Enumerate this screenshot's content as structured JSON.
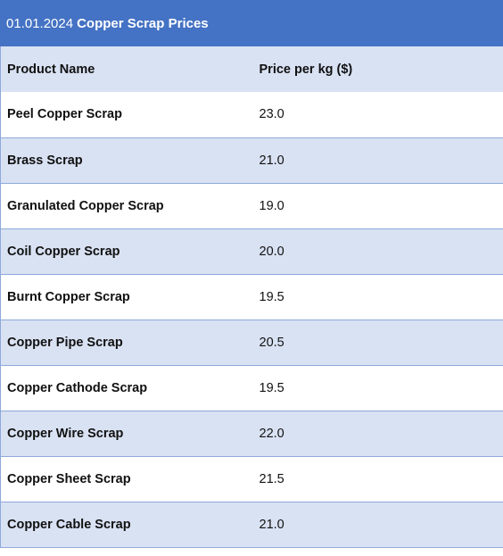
{
  "title": {
    "date": "01.01.2024",
    "text": "Copper Scrap Prices"
  },
  "table": {
    "headers": [
      "Product Name",
      "Price per kg ($)"
    ],
    "rows": [
      {
        "name": "Peel Copper Scrap",
        "price": "23.0"
      },
      {
        "name": "Brass Scrap",
        "price": "21.0"
      },
      {
        "name": "Granulated Copper Scrap",
        "price": "19.0"
      },
      {
        "name": "Coil Copper Scrap",
        "price": "20.0"
      },
      {
        "name": "Burnt Copper Scrap",
        "price": "19.5"
      },
      {
        "name": "Copper Pipe Scrap",
        "price": "20.5"
      },
      {
        "name": "Copper Cathode Scrap",
        "price": "19.5"
      },
      {
        "name": "Copper Wire Scrap",
        "price": "22.0"
      },
      {
        "name": "Copper Sheet Scrap",
        "price": "21.5"
      },
      {
        "name": "Copper Cable Scrap",
        "price": "21.0"
      }
    ]
  },
  "colors": {
    "header_bar": "#4472c4",
    "band": "#d9e2f3",
    "border": "#8ea9db"
  }
}
